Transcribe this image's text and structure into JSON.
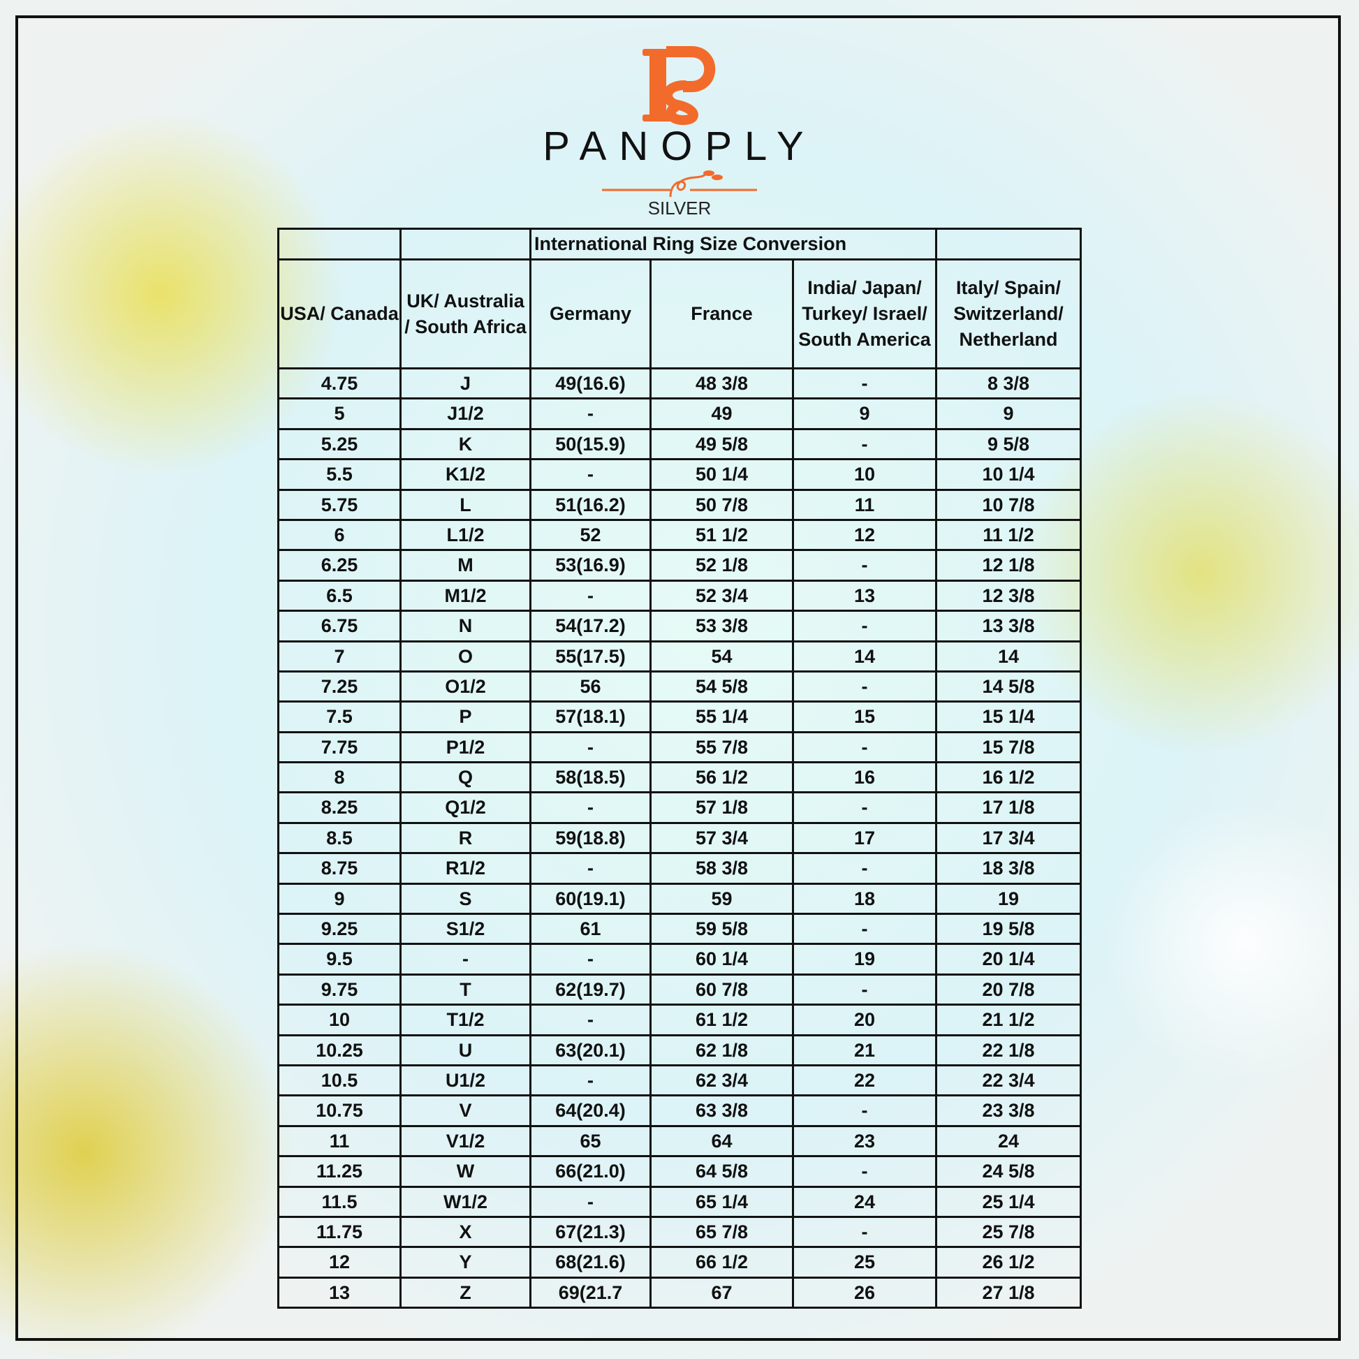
{
  "brand": {
    "name": "PANOPLY",
    "sub": "SILVER",
    "monogram": "PS",
    "accent": "#f26b2a"
  },
  "table": {
    "title": "International Ring Size Conversion",
    "headers": [
      "USA/ Canada",
      "UK/ Australia / South Africa",
      "Germany",
      "France",
      "India/ Japan/ Turkey/ Israel/ South America",
      "Italy/ Spain/ Switzerland/ Netherland"
    ],
    "rows": [
      [
        "4.75",
        "J",
        "49(16.6)",
        "48 3/8",
        "-",
        "8 3/8"
      ],
      [
        "5",
        "J1/2",
        "-",
        "49",
        "9",
        "9"
      ],
      [
        "5.25",
        "K",
        "50(15.9)",
        "49 5/8",
        "-",
        "9 5/8"
      ],
      [
        "5.5",
        "K1/2",
        "-",
        "50 1/4",
        "10",
        "10 1/4"
      ],
      [
        "5.75",
        "L",
        "51(16.2)",
        "50 7/8",
        "11",
        "10 7/8"
      ],
      [
        "6",
        "L1/2",
        "52",
        "51 1/2",
        "12",
        "11 1/2"
      ],
      [
        "6.25",
        "M",
        "53(16.9)",
        "52 1/8",
        "-",
        "12 1/8"
      ],
      [
        "6.5",
        "M1/2",
        "-",
        "52 3/4",
        "13",
        "12 3/8"
      ],
      [
        "6.75",
        "N",
        "54(17.2)",
        "53 3/8",
        "-",
        "13 3/8"
      ],
      [
        "7",
        "O",
        "55(17.5)",
        "54",
        "14",
        "14"
      ],
      [
        "7.25",
        "O1/2",
        "56",
        "54 5/8",
        "-",
        "14 5/8"
      ],
      [
        "7.5",
        "P",
        "57(18.1)",
        "55 1/4",
        "15",
        "15 1/4"
      ],
      [
        "7.75",
        "P1/2",
        "-",
        "55 7/8",
        "-",
        "15 7/8"
      ],
      [
        "8",
        "Q",
        "58(18.5)",
        "56 1/2",
        "16",
        "16 1/2"
      ],
      [
        "8.25",
        "Q1/2",
        "-",
        "57 1/8",
        "-",
        "17 1/8"
      ],
      [
        "8.5",
        "R",
        "59(18.8)",
        "57 3/4",
        "17",
        "17 3/4"
      ],
      [
        "8.75",
        "R1/2",
        "-",
        "58 3/8",
        "-",
        "18 3/8"
      ],
      [
        "9",
        "S",
        "60(19.1)",
        "59",
        "18",
        "19"
      ],
      [
        "9.25",
        "S1/2",
        "61",
        "59 5/8",
        "-",
        "19 5/8"
      ],
      [
        "9.5",
        "-",
        "-",
        "60 1/4",
        "19",
        "20 1/4"
      ],
      [
        "9.75",
        "T",
        "62(19.7)",
        "60 7/8",
        "-",
        "20 7/8"
      ],
      [
        "10",
        "T1/2",
        "-",
        "61 1/2",
        "20",
        "21 1/2"
      ],
      [
        "10.25",
        "U",
        "63(20.1)",
        "62 1/8",
        "21",
        "22 1/8"
      ],
      [
        "10.5",
        "U1/2",
        "-",
        "62 3/4",
        "22",
        "22 3/4"
      ],
      [
        "10.75",
        "V",
        "64(20.4)",
        "63 3/8",
        "-",
        "23 3/8"
      ],
      [
        "11",
        "V1/2",
        "65",
        "64",
        "23",
        "24"
      ],
      [
        "11.25",
        "W",
        "66(21.0)",
        "64 5/8",
        "-",
        "24 5/8"
      ],
      [
        "11.5",
        "W1/2",
        "-",
        "65 1/4",
        "24",
        "25 1/4"
      ],
      [
        "11.75",
        "X",
        "67(21.3)",
        "65 7/8",
        "-",
        "25 7/8"
      ],
      [
        "12",
        "Y",
        "68(21.6)",
        "66 1/2",
        "25",
        "26 1/2"
      ],
      [
        "13",
        "Z",
        "69(21.7",
        "67",
        "26",
        "27 1/8"
      ]
    ]
  }
}
